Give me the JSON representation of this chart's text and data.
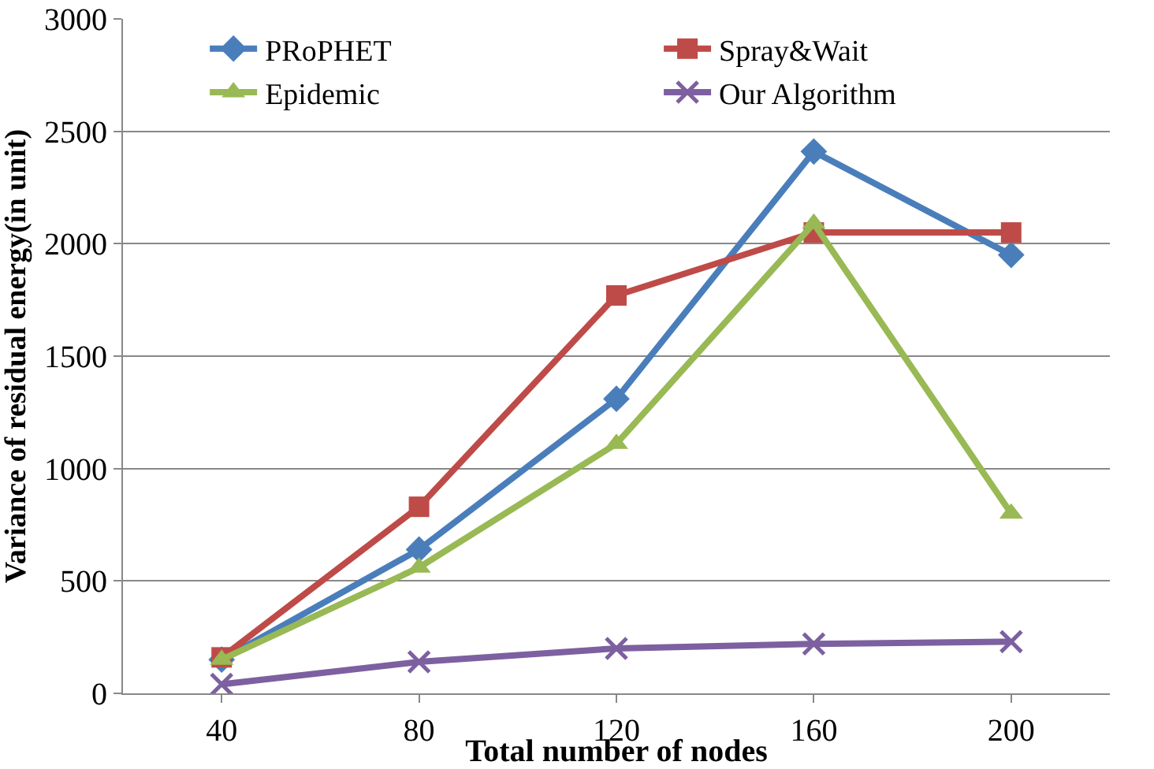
{
  "chart_data": {
    "type": "line",
    "xlabel": "Total number of nodes",
    "ylabel": "Variance of residual energy(in unit)",
    "categories": [
      "40",
      "80",
      "120",
      "160",
      "200"
    ],
    "series": [
      {
        "name": "PRoPHET",
        "color": "#4a7ebb",
        "marker": "diamond",
        "values": [
          150,
          640,
          1310,
          2410,
          1950
        ]
      },
      {
        "name": "Spray&Wait",
        "color": "#be4b48",
        "marker": "square",
        "values": [
          160,
          830,
          1770,
          2050,
          2050
        ]
      },
      {
        "name": "Epidemic",
        "color": "#98b954",
        "marker": "triangle",
        "values": [
          150,
          560,
          1110,
          2090,
          800
        ]
      },
      {
        "name": "Our Algorithm",
        "color": "#7d60a0",
        "marker": "cross",
        "values": [
          40,
          140,
          200,
          220,
          230
        ]
      }
    ],
    "ylim": [
      0,
      3000
    ],
    "yticks": [
      0,
      500,
      1000,
      1500,
      2000,
      2500,
      3000
    ],
    "grid": "y",
    "legend": "top"
  }
}
